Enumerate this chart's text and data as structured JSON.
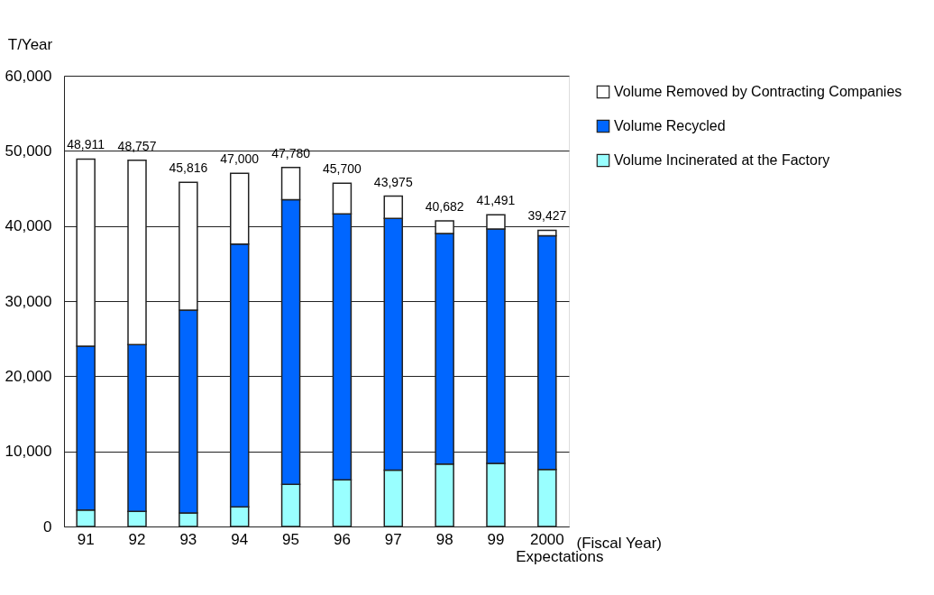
{
  "chart_data": {
    "type": "bar",
    "stacked": true,
    "ylabel": "T/Year",
    "xlabel": "(Fiscal Year)",
    "categories": [
      "91",
      "92",
      "93",
      "94",
      "95",
      "96",
      "97",
      "98",
      "99",
      "2000"
    ],
    "series": [
      {
        "name": "Volume Incinerated at the Factory",
        "color": "#99ffff",
        "values": [
          2200,
          2000,
          1800,
          2600,
          5600,
          6200,
          7500,
          8300,
          8400,
          7600
        ]
      },
      {
        "name": "Volume Recycled",
        "color": "#0066ff",
        "values": [
          21800,
          22200,
          27000,
          35000,
          37900,
          35400,
          33500,
          30700,
          31200,
          31100
        ]
      },
      {
        "name": "Volume Removed by Contracting Companies",
        "color": "#ffffff",
        "values": [
          24911,
          24557,
          17016,
          9400,
          4280,
          4100,
          2975,
          1682,
          1891,
          727
        ]
      }
    ],
    "totals": [
      "48,911",
      "48,757",
      "45,816",
      "47,000",
      "47,780",
      "45,700",
      "43,975",
      "40,682",
      "41,491",
      "39,427"
    ],
    "ylim": [
      0,
      60000
    ],
    "yticks": [
      0,
      {
        "value": 10000,
        "label": "10,000"
      },
      {
        "value": 20000,
        "label": "20,000"
      },
      {
        "value": 30000,
        "label": "30,000"
      },
      {
        "value": 40000,
        "label": "40,000"
      },
      {
        "value": 50000,
        "label": "50,000"
      },
      {
        "value": 60000,
        "label": "60,000"
      }
    ],
    "grid": "y",
    "legend": "top right",
    "annotations": [
      "Expectations"
    ]
  }
}
